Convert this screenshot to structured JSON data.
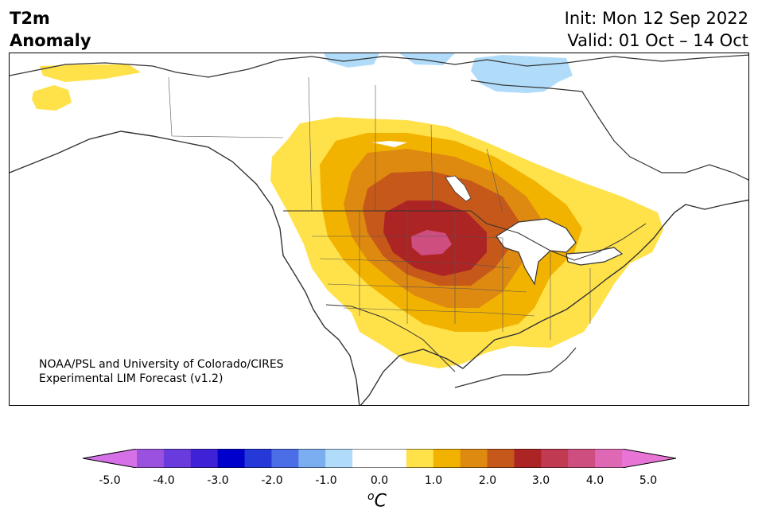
{
  "header": {
    "title_line1": "T2m",
    "title_line2": "Anomaly",
    "init": "Init: Mon 12 Sep 2022",
    "valid": "Valid: 01 Oct – 14 Oct"
  },
  "credit": {
    "line1": "NOAA/PSL and University of Colorado/CIRES",
    "line2": "Experimental LIM Forecast (v1.2)"
  },
  "colorbar": {
    "ticks": [
      "-5.0",
      "-4.0",
      "-3.0",
      "-2.0",
      "-1.0",
      "0.0",
      "1.0",
      "2.0",
      "3.0",
      "4.0",
      "5.0"
    ],
    "unit_sup": "o",
    "unit": "C",
    "colors": [
      "#d570e6",
      "#9a52de",
      "#6a3bdc",
      "#3f21d6",
      "#0000cc",
      "#2538d8",
      "#4b6ee6",
      "#7aaef0",
      "#b0dcfa",
      "#ffffff",
      "#ffffff",
      "#ffe14a",
      "#f2b300",
      "#de8910",
      "#c6581a",
      "#ad2424",
      "#c03b52",
      "#cf4e80",
      "#df68b5",
      "#e874d6"
    ]
  }
}
